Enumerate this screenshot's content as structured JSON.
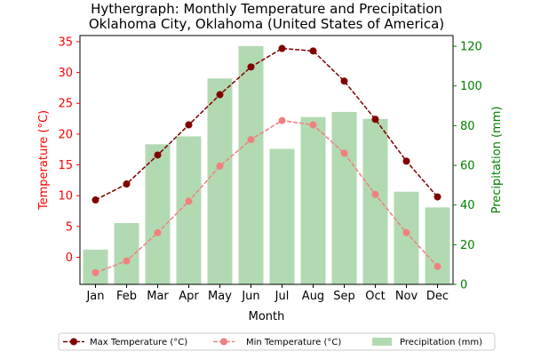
{
  "chart_data": {
    "type": "bar+line",
    "title_line1": "Hythergraph: Monthly Temperature and Precipitation",
    "title_line2": "Oklahoma City, Oklahoma (United States of America)",
    "xlabel": "Month",
    "ylabel_left": "Temperature (°C)",
    "ylabel_right": "Precipitation (mm)",
    "categories": [
      "Jan",
      "Feb",
      "Mar",
      "Apr",
      "May",
      "Jun",
      "Jul",
      "Aug",
      "Sep",
      "Oct",
      "Nov",
      "Dec"
    ],
    "y_left": {
      "range": [
        -4.4,
        36.0
      ],
      "ticks": [
        0,
        5,
        10,
        15,
        20,
        25,
        30,
        35
      ]
    },
    "y_right": {
      "range": [
        0,
        125.4
      ],
      "ticks": [
        0,
        20,
        40,
        60,
        80,
        100,
        120
      ]
    },
    "series": [
      {
        "name": "Precipitation (mm)",
        "axis": "right",
        "kind": "bar",
        "color": "#b2dab2",
        "values": [
          17.5,
          30.9,
          70.6,
          74.6,
          103.8,
          120.1,
          68.3,
          84.3,
          86.9,
          83.4,
          46.7,
          38.8
        ]
      },
      {
        "name": "Max Temperature (°C)",
        "axis": "left",
        "kind": "line",
        "color": "#800000",
        "values": [
          9.3,
          11.9,
          16.6,
          21.5,
          26.4,
          30.9,
          33.9,
          33.5,
          28.6,
          22.4,
          15.6,
          9.8
        ]
      },
      {
        "name": "Min Temperature (°C)",
        "axis": "left",
        "kind": "line",
        "color": "#f08080",
        "values": [
          -2.5,
          -0.6,
          4.0,
          9.1,
          14.8,
          19.1,
          22.2,
          21.5,
          16.9,
          10.2,
          4.0,
          -1.5
        ]
      }
    ],
    "legend": [
      "Max Temperature (°C)",
      "Min Temperature (°C)",
      "Precipitation (mm)"
    ],
    "legend_position": "bottom-center",
    "grid": false,
    "axis_colors": {
      "left": "#ff0000",
      "right": "#008000"
    }
  }
}
